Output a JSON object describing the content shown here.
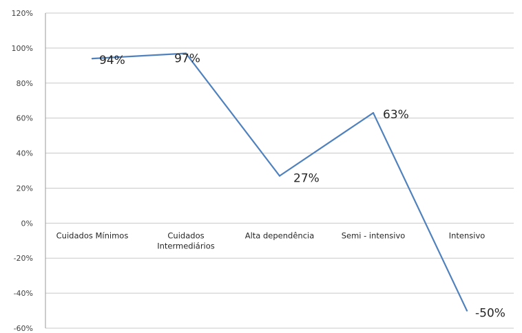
{
  "chart_data": {
    "type": "line",
    "title": "",
    "xlabel": "",
    "ylabel": "",
    "categories": [
      [
        "Cuidados Mínimos"
      ],
      [
        "Cuidados",
        "Intermediários"
      ],
      [
        "Alta dependência"
      ],
      [
        "Semi - intensivo"
      ],
      [
        "Intensivo"
      ]
    ],
    "series": [
      {
        "values": [
          0.94,
          0.97,
          0.27,
          0.63,
          -0.5
        ],
        "labels": [
          "94%",
          "97%",
          "27%",
          "63%",
          "-50%"
        ],
        "color": "#4f81bd"
      }
    ],
    "ylim": [
      -0.6,
      1.2
    ],
    "yticks": [
      1.2,
      1.0,
      0.8,
      0.6,
      0.4,
      0.2,
      0.0,
      -0.2,
      -0.4,
      -0.6
    ],
    "ytick_labels": [
      "120%",
      "100%",
      "80%",
      "60%",
      "40%",
      "20%",
      "0%",
      "-20%",
      "-40%",
      "-60%"
    ],
    "grid": true,
    "legend": "none"
  }
}
